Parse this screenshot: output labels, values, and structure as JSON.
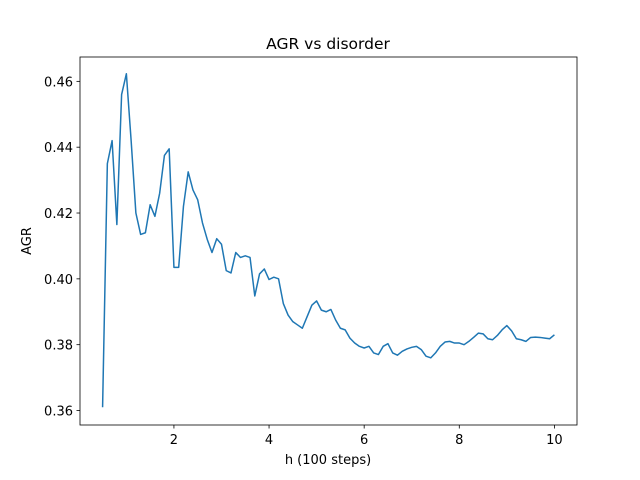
{
  "chart_data": {
    "type": "line",
    "title": "AGR vs disorder",
    "x_label": "h (100 steps)",
    "y_label": "AGR",
    "x": [
      0.5,
      0.6,
      0.7,
      0.8,
      0.9,
      1.0,
      1.1,
      1.2,
      1.3,
      1.4,
      1.5,
      1.6,
      1.7,
      1.8,
      1.9,
      2.0,
      2.1,
      2.2,
      2.3,
      2.4,
      2.5,
      2.6,
      2.7,
      2.8,
      2.9,
      3.0,
      3.1,
      3.2,
      3.3,
      3.4,
      3.5,
      3.6,
      3.7,
      3.8,
      3.9,
      4.0,
      4.1,
      4.2,
      4.3,
      4.4,
      4.5,
      4.6,
      4.7,
      4.8,
      4.9,
      5.0,
      5.1,
      5.2,
      5.3,
      5.4,
      5.5,
      5.6,
      5.7,
      5.8,
      5.9,
      6.0,
      6.1,
      6.2,
      6.3,
      6.4,
      6.5,
      6.6,
      6.7,
      6.8,
      6.9,
      7.0,
      7.1,
      7.2,
      7.3,
      7.4,
      7.5,
      7.6,
      7.7,
      7.8,
      7.9,
      8.0,
      8.1,
      8.2,
      8.3,
      8.4,
      8.5,
      8.6,
      8.7,
      8.8,
      8.9,
      9.0,
      9.1,
      9.2,
      9.3,
      9.4,
      9.5,
      9.6,
      9.7,
      9.8,
      9.9,
      10.0
    ],
    "values": [
      0.361,
      0.435,
      0.442,
      0.4165,
      0.456,
      0.4623,
      0.442,
      0.42,
      0.4135,
      0.414,
      0.4225,
      0.419,
      0.426,
      0.4375,
      0.4395,
      0.4035,
      0.4035,
      0.422,
      0.4325,
      0.427,
      0.424,
      0.417,
      0.412,
      0.408,
      0.4122,
      0.4105,
      0.4025,
      0.4018,
      0.408,
      0.4065,
      0.407,
      0.4065,
      0.3948,
      0.4015,
      0.403,
      0.3998,
      0.4005,
      0.4,
      0.3925,
      0.389,
      0.387,
      0.386,
      0.385,
      0.3885,
      0.392,
      0.3933,
      0.3905,
      0.39,
      0.3907,
      0.3875,
      0.385,
      0.3845,
      0.382,
      0.3805,
      0.3795,
      0.379,
      0.3795,
      0.3775,
      0.377,
      0.3795,
      0.3803,
      0.3775,
      0.3768,
      0.378,
      0.3787,
      0.3792,
      0.3795,
      0.3785,
      0.3765,
      0.376,
      0.3775,
      0.3795,
      0.3808,
      0.381,
      0.3805,
      0.3805,
      0.38,
      0.381,
      0.3822,
      0.3835,
      0.3833,
      0.3818,
      0.3815,
      0.3828,
      0.3845,
      0.3858,
      0.3842,
      0.3818,
      0.3815,
      0.381,
      0.3822,
      0.3823,
      0.3822,
      0.382,
      0.3818,
      0.383
    ],
    "color": "#1f77b4",
    "xlim": [
      0.025,
      10.475
    ],
    "ylim": [
      0.3556,
      0.4674
    ],
    "xticks": [
      2,
      4,
      6,
      8,
      10
    ],
    "yticks": [
      0.36,
      0.38,
      {
        "value": 0.4,
        "label": "0.40"
      },
      0.42,
      0.44,
      0.46
    ]
  }
}
